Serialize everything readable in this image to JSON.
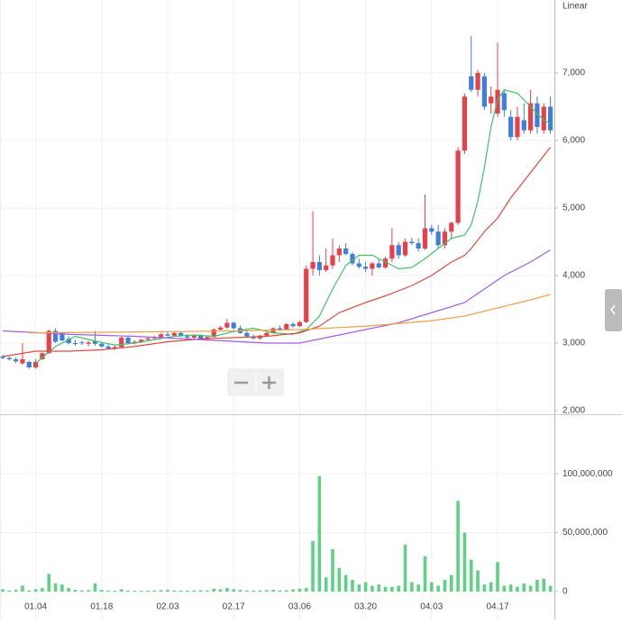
{
  "chart_data": [
    {
      "type": "candlestick",
      "axis_label": "Linear",
      "categories": [
        null,
        null,
        null,
        null,
        null,
        "01.04",
        null,
        null,
        null,
        null,
        null,
        null,
        null,
        null,
        null,
        "01.18",
        null,
        null,
        null,
        null,
        null,
        null,
        null,
        null,
        null,
        "02.03",
        null,
        null,
        null,
        null,
        null,
        null,
        null,
        null,
        null,
        "02.17",
        null,
        null,
        null,
        null,
        null,
        null,
        null,
        null,
        null,
        "03.06",
        null,
        null,
        null,
        null,
        null,
        null,
        null,
        null,
        null,
        "03.20",
        null,
        null,
        null,
        null,
        null,
        null,
        null,
        null,
        null,
        "04.03",
        null,
        null,
        null,
        null,
        null,
        null,
        null,
        null,
        null,
        "04.17",
        null,
        null,
        null,
        null,
        null,
        null,
        null,
        null
      ],
      "open": [
        2800,
        2780,
        2760,
        2700,
        2720,
        2640,
        2760,
        2850,
        3180,
        3150,
        3060,
        3000,
        3010,
        2990,
        3030,
        2990,
        2950,
        2920,
        2940,
        3080,
        3000,
        3020,
        3050,
        3070,
        3090,
        3130,
        3110,
        3150,
        3100,
        3080,
        3110,
        3060,
        3090,
        3200,
        3230,
        3300,
        3220,
        3150,
        3100,
        3070,
        3110,
        3150,
        3220,
        3200,
        3280,
        3250,
        3310,
        4100,
        4200,
        4080,
        4150,
        4300,
        4400,
        4320,
        4180,
        4130,
        4100,
        4180,
        4120,
        4250,
        4450,
        4300,
        4500,
        4480,
        4400,
        4700,
        4650,
        4450,
        4650,
        4780,
        5850,
        6950,
        6750,
        6950,
        6550,
        6400,
        6700,
        6350,
        6050,
        6300,
        6150,
        6550,
        6150,
        6500
      ],
      "high": [
        2830,
        2800,
        2790,
        3000,
        2740,
        2760,
        2860,
        3200,
        3220,
        3170,
        3100,
        3050,
        3040,
        3030,
        3180,
        3010,
        2980,
        2960,
        3100,
        3100,
        3040,
        3060,
        3090,
        3110,
        3150,
        3160,
        3180,
        3170,
        3130,
        3120,
        3130,
        3100,
        3220,
        3250,
        3360,
        3320,
        3260,
        3180,
        3130,
        3120,
        3160,
        3230,
        3260,
        3300,
        3310,
        3330,
        4150,
        4950,
        4300,
        4400,
        4550,
        4450,
        4480,
        4350,
        4250,
        4200,
        4200,
        4250,
        4280,
        4700,
        4500,
        4550,
        4560,
        4550,
        5200,
        4750,
        4750,
        4700,
        4800,
        5900,
        6700,
        7550,
        7050,
        7000,
        6800,
        7450,
        6750,
        6450,
        6500,
        6550,
        6750,
        6650,
        6550,
        6650
      ],
      "low": [
        2760,
        2740,
        2700,
        2680,
        2620,
        2620,
        2750,
        2840,
        3000,
        3020,
        2980,
        2960,
        2970,
        2950,
        2960,
        2930,
        2900,
        2900,
        2930,
        2980,
        2980,
        3000,
        3030,
        3040,
        3080,
        3100,
        3100,
        3090,
        3070,
        3060,
        3050,
        3040,
        3080,
        3180,
        3210,
        3200,
        3140,
        3080,
        3050,
        3050,
        3090,
        3140,
        3180,
        3190,
        3230,
        3240,
        3300,
        4000,
        4000,
        4050,
        4100,
        4200,
        4300,
        4150,
        4100,
        4050,
        4000,
        4100,
        4100,
        4200,
        4250,
        4280,
        4450,
        4350,
        4380,
        4600,
        4400,
        4400,
        4550,
        4750,
        5800,
        6720,
        6650,
        6450,
        6400,
        6350,
        6350,
        6000,
        6000,
        6100,
        6100,
        6100,
        6100,
        6100
      ],
      "close": [
        2780,
        2760,
        2730,
        2760,
        2640,
        2720,
        2850,
        3180,
        3020,
        3040,
        3000,
        2990,
        3000,
        3010,
        2990,
        2950,
        2920,
        2940,
        3080,
        3000,
        3020,
        3050,
        3070,
        3090,
        3130,
        3110,
        3150,
        3100,
        3080,
        3110,
        3060,
        3090,
        3200,
        3230,
        3300,
        3220,
        3150,
        3100,
        3070,
        3110,
        3150,
        3220,
        3200,
        3280,
        3250,
        3310,
        4100,
        4200,
        4080,
        4150,
        4300,
        4400,
        4320,
        4180,
        4130,
        4100,
        4180,
        4120,
        4250,
        4450,
        4300,
        4500,
        4480,
        4400,
        4700,
        4650,
        4450,
        4650,
        4780,
        5850,
        6650,
        6750,
        7000,
        6500,
        6650,
        6750,
        6450,
        6050,
        6350,
        6150,
        6550,
        6200,
        6500,
        6150
      ],
      "up_color": "#e8404a",
      "down_color": "#3d7fd9",
      "ylim": [
        2000,
        8080
      ],
      "yticks": [
        {
          "value": 2000,
          "label": "2,000"
        },
        {
          "value": 3000,
          "label": "3,000"
        },
        {
          "value": 4000,
          "label": "4,000"
        },
        {
          "value": 5000,
          "label": "5,000"
        },
        {
          "value": 6000,
          "label": "6,000"
        },
        {
          "value": 7000,
          "label": "7,000"
        }
      ],
      "grid": true,
      "moving_averages": [
        {
          "color": "#3cc46a",
          "x": [
            5,
            8,
            11,
            14,
            17,
            20,
            23,
            26,
            29,
            32,
            35,
            38,
            41,
            44,
            46,
            48,
            50,
            52,
            54,
            56,
            58,
            60,
            62,
            64,
            66,
            68,
            70,
            71,
            72,
            73,
            74,
            75,
            76,
            78,
            80,
            82,
            83
          ],
          "values": [
            2700,
            2950,
            3100,
            3030,
            2970,
            3000,
            3050,
            3100,
            3120,
            3100,
            3170,
            3220,
            3150,
            3130,
            3200,
            3400,
            3800,
            4150,
            4300,
            4300,
            4200,
            4100,
            4120,
            4250,
            4400,
            4550,
            4600,
            4750,
            5100,
            5600,
            6200,
            6600,
            6750,
            6700,
            6500,
            6300,
            6250
          ]
        },
        {
          "color": "#e04a3c",
          "x": [
            0,
            5,
            10,
            15,
            20,
            25,
            30,
            35,
            40,
            45,
            48,
            51,
            55,
            58,
            62,
            65,
            68,
            70,
            71,
            73,
            75,
            77,
            79,
            81,
            83
          ],
          "values": [
            2800,
            2880,
            2880,
            2900,
            2950,
            3020,
            3060,
            3080,
            3100,
            3150,
            3250,
            3450,
            3600,
            3700,
            3850,
            4000,
            4200,
            4300,
            4400,
            4650,
            4850,
            5150,
            5400,
            5650,
            5900
          ]
        },
        {
          "color": "#a45de0",
          "x": [
            0,
            10,
            20,
            30,
            40,
            45,
            50,
            55,
            60,
            65,
            70,
            73,
            76,
            80,
            83
          ],
          "values": [
            3180,
            3130,
            3100,
            3050,
            3000,
            3000,
            3100,
            3200,
            3300,
            3450,
            3600,
            3800,
            4000,
            4200,
            4380
          ]
        },
        {
          "color": "#f0a04a",
          "x": [
            4,
            15,
            25,
            35,
            45,
            55,
            65,
            70,
            75,
            80,
            83
          ],
          "values": [
            3150,
            3160,
            3170,
            3180,
            3200,
            3250,
            3330,
            3400,
            3520,
            3640,
            3720
          ]
        }
      ]
    },
    {
      "type": "bar",
      "color": "#5fd184",
      "values": [
        2000000,
        1000000,
        1500000,
        5000000,
        1000000,
        2000000,
        3000000,
        15000000,
        7000000,
        6000000,
        3000000,
        1500000,
        1000000,
        1200000,
        7000000,
        1500000,
        1000000,
        800000,
        2000000,
        1000000,
        800000,
        700000,
        900000,
        1000000,
        1200000,
        1500000,
        1000000,
        900000,
        800000,
        1000000,
        1200000,
        1000000,
        2500000,
        2000000,
        3000000,
        2000000,
        1500000,
        1000000,
        900000,
        1000000,
        1200000,
        1500000,
        1000000,
        1200000,
        2000000,
        2500000,
        3000000,
        43000000,
        98000000,
        12000000,
        36000000,
        20000000,
        14000000,
        10000000,
        6000000,
        8000000,
        5000000,
        6000000,
        4000000,
        4000000,
        5000000,
        40000000,
        8000000,
        6000000,
        30000000,
        8000000,
        5000000,
        10000000,
        14000000,
        77000000,
        50000000,
        27000000,
        18000000,
        6000000,
        8000000,
        25000000,
        5000000,
        6000000,
        4000000,
        7000000,
        5000000,
        10000000,
        11000000,
        5000000
      ],
      "ylim": [
        0,
        149000000
      ],
      "yticks": [
        0,
        {
          "value": 50000000,
          "label": "50,000,000"
        },
        {
          "value": 100000000,
          "label": "100,000,000"
        }
      ]
    }
  ]
}
